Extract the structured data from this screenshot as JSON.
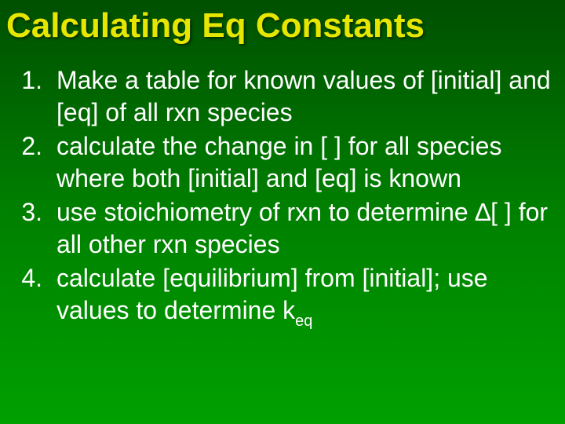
{
  "title": {
    "text": "Calculating Eq Constants",
    "color": "#e6e600"
  },
  "body_color": "#ffffff",
  "items": [
    {
      "num": "1.",
      "text": "Make a table for known values of [initial] and [eq] of all rxn species"
    },
    {
      "num": "2.",
      "text": "calculate the change in [  ] for all species where both [initial] and [eq] is known"
    },
    {
      "num": "3.",
      "text": "use stoichiometry of rxn to determine ∆[  ] for all other rxn species"
    },
    {
      "num": "4.",
      "pre": "calculate [equilibrium] from [initial]; use values to determine k",
      "sub": "eq"
    }
  ]
}
